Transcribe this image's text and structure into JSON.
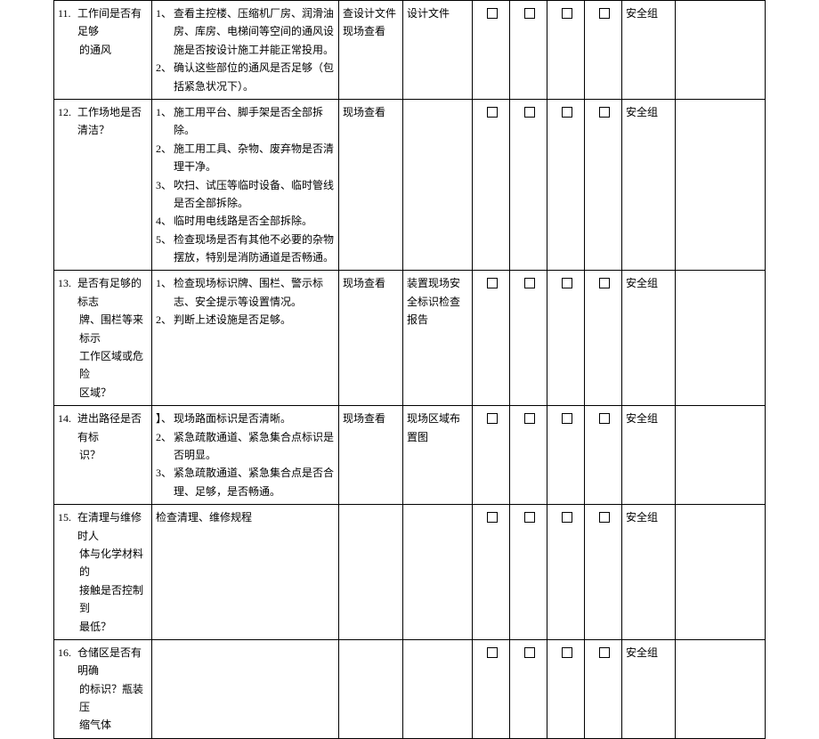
{
  "rows": [
    {
      "num": "11.",
      "title_l1": "工作间是否有足够",
      "title_l2": "的通风",
      "desc": [
        {
          "n": "1、",
          "t": "查看主控楼、压缩机厂房、润滑油房、库房、电梯间等空间的通风设施是否按设计施工并能正常投用。"
        },
        {
          "n": "2、",
          "t": "确认这些部位的通风是否足够（包括紧急状况下）。"
        }
      ],
      "method": "查设计文件现场查看",
      "ref": "设计文件",
      "resp": "安全组"
    },
    {
      "num": "12.",
      "title_l1": "工作场地是否清洁？",
      "title_l2": "",
      "desc": [
        {
          "n": "1、",
          "t": "施工用平台、脚手架是否全部拆除。"
        },
        {
          "n": "2、",
          "t": "施工用工具、杂物、废弃物是否清理干净。"
        },
        {
          "n": "3、",
          "t": "吹扫、试压等临时设备、临时管线是否全部拆除。"
        },
        {
          "n": "4、",
          "t": "临时用电线路是否全部拆除。"
        },
        {
          "n": "5、",
          "t": "检查现场是否有其他不必要的杂物摆放，特别是消防通道是否畅通。"
        }
      ],
      "method": "现场查看",
      "ref": "",
      "resp": "安全组"
    },
    {
      "num": "13.",
      "title_l1": "是否有足够的标志",
      "title_l2": "牌、围栏等来标示",
      "title_l3": "工作区域或危险",
      "title_l4": "区域？",
      "desc": [
        {
          "n": "1、",
          "t": "检查现场标识牌、围栏、警示标志、安全提示等设置情况。"
        },
        {
          "n": "2、",
          "t": "判断上述设施是否足够。"
        }
      ],
      "method": "现场查看",
      "ref": "装置现场安全标识检查报告",
      "resp": "安全组"
    },
    {
      "num": "14.",
      "title_l1": "进出路径是否有标",
      "title_l2": "识？",
      "desc": [
        {
          "n": "】、",
          "t": "现场路面标识是否清晰。"
        },
        {
          "n": "2、",
          "t": "紧急疏散通道、紧急集合点标识是否明显。"
        },
        {
          "n": "3、",
          "t": "紧急疏散通道、紧急集合点是否合理、足够，是否畅通。"
        }
      ],
      "method": "现场查看",
      "ref": "现场区域布置图",
      "resp": "安全组"
    },
    {
      "num": "15.",
      "title_l1": "在清理与维修时人",
      "title_l2": "体与化学材料的",
      "title_l3": "接触是否控制到",
      "title_l4": "最低？",
      "desc": [
        {
          "n": "",
          "t": "检查清理、维修规程"
        }
      ],
      "method": "",
      "ref": "",
      "resp": "安全组"
    },
    {
      "num": "16.",
      "title_l1": "仓储区是否有明确",
      "title_l2": "的标识？瓶装压",
      "title_l3": "缩气体",
      "desc": [],
      "method": "",
      "ref": "",
      "resp": "安全组"
    }
  ]
}
